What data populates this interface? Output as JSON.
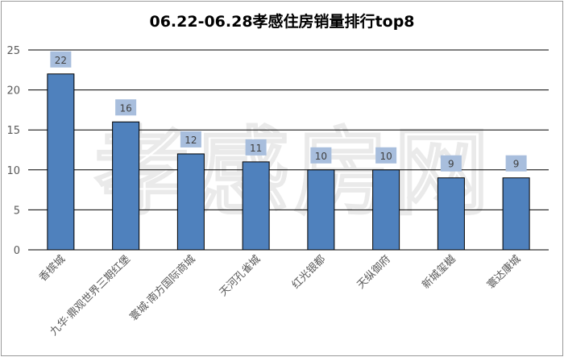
{
  "chart_data": {
    "type": "bar",
    "title": "06.22-06.28孝感住房销量排行top8",
    "categories": [
      "香槟城",
      "九华·鼎观世界三期红堡",
      "寰城·南方国际商城",
      "天河孔雀城",
      "红光银都",
      "天纵御府",
      "新城玺樾",
      "寰达康城"
    ],
    "values": [
      22,
      16,
      12,
      11,
      10,
      10,
      9,
      9
    ],
    "ylim": [
      0,
      25
    ],
    "yticks": [
      0,
      5,
      10,
      15,
      20,
      25
    ],
    "grid": true,
    "bar_color": "#4f81bd",
    "label_bg_color": "#a8bedd"
  },
  "watermark": "孝感房网"
}
